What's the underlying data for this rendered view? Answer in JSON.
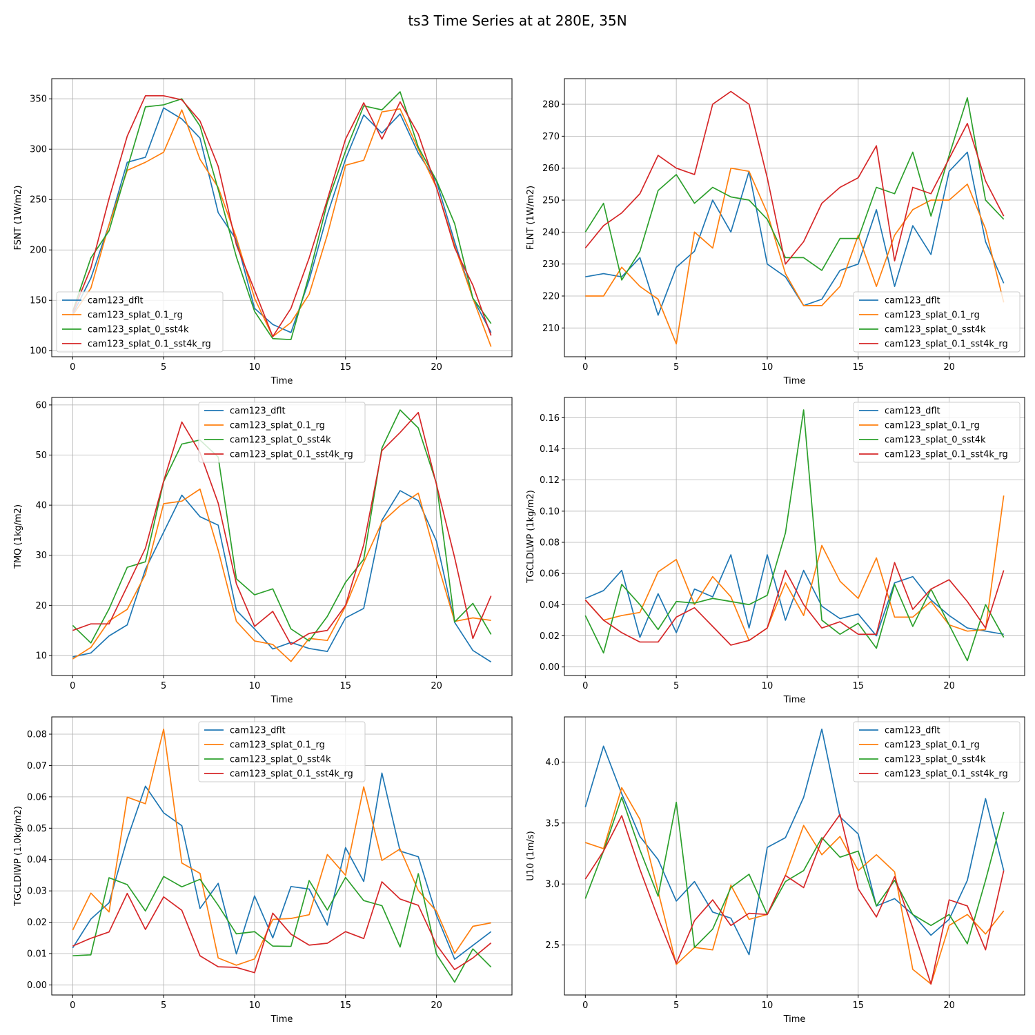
{
  "figure": {
    "title": "ts3 Time Series at at 280E, 35N"
  },
  "colors": {
    "cam123_dflt": "#1f77b4",
    "cam123_splat_0.1_rg": "#ff7f0e",
    "cam123_splat_0_sst4k": "#2ca02c",
    "cam123_splat_0.1_sst4k_rg": "#d62728"
  },
  "chart_data": [
    {
      "type": "line",
      "title": "",
      "xlabel": "Time",
      "ylabel": "FSNT (1W/m2)",
      "xlim": [
        -1.15,
        24.15
      ],
      "ylim": [
        94,
        370
      ],
      "xticks": [
        0,
        5,
        10,
        15,
        20
      ],
      "yticks": [
        100,
        150,
        200,
        250,
        300,
        350
      ],
      "ytick_labels": [
        "100",
        "150",
        "200",
        "250",
        "300",
        "350"
      ],
      "legend_loc": "lower-left",
      "x": [
        0,
        1,
        2,
        3,
        4,
        5,
        6,
        7,
        8,
        9,
        10,
        11,
        12,
        13,
        14,
        15,
        16,
        17,
        18,
        19,
        20,
        21,
        22,
        23
      ],
      "series": [
        {
          "name": "cam123_dflt",
          "color": "#1f77b4",
          "values": [
            136,
            172,
            225,
            287,
            292,
            341,
            330,
            311,
            237,
            210,
            142,
            126,
            118,
            170,
            235,
            290,
            334,
            316,
            335,
            296,
            268,
            208,
            152,
            118
          ]
        },
        {
          "name": "cam123_splat_0.1_rg",
          "color": "#ff7f0e",
          "values": [
            135,
            162,
            225,
            279,
            287,
            297,
            339,
            290,
            262,
            212,
            152,
            114,
            128,
            156,
            215,
            284,
            289,
            337,
            340,
            300,
            262,
            204,
            152,
            104
          ]
        },
        {
          "name": "cam123_splat_0_sst4k",
          "color": "#2ca02c",
          "values": [
            139,
            192,
            219,
            281,
            342,
            344,
            350,
            323,
            260,
            193,
            139,
            112,
            111,
            175,
            247,
            298,
            343,
            339,
            357,
            302,
            269,
            226,
            152,
            127
          ]
        },
        {
          "name": "cam123_splat_0.1_sst4k_rg",
          "color": "#d62728",
          "values": [
            138,
            182,
            251,
            313,
            353,
            353,
            349,
            328,
            283,
            205,
            160,
            114,
            142,
            192,
            250,
            310,
            346,
            310,
            347,
            315,
            262,
            202,
            165,
            115
          ]
        }
      ]
    },
    {
      "type": "line",
      "title": "",
      "xlabel": "Time",
      "ylabel": "FLNT (1W/m2)",
      "xlim": [
        -1.15,
        24.15
      ],
      "ylim": [
        201,
        288
      ],
      "xticks": [
        0,
        5,
        10,
        15,
        20
      ],
      "yticks": [
        210,
        220,
        230,
        240,
        250,
        260,
        270,
        280
      ],
      "ytick_labels": [
        "210",
        "220",
        "230",
        "240",
        "250",
        "260",
        "270",
        "280"
      ],
      "legend_loc": "lower-right",
      "x": [
        0,
        1,
        2,
        3,
        4,
        5,
        6,
        7,
        8,
        9,
        10,
        11,
        12,
        13,
        14,
        15,
        16,
        17,
        18,
        19,
        20,
        21,
        22,
        23
      ],
      "series": [
        {
          "name": "cam123_dflt",
          "color": "#1f77b4",
          "values": [
            226,
            227,
            226,
            232,
            214,
            229,
            234,
            250,
            240,
            259,
            230,
            226,
            217,
            219,
            228,
            230,
            247,
            223,
            242,
            233,
            259,
            265,
            237,
            224
          ]
        },
        {
          "name": "cam123_splat_0.1_rg",
          "color": "#ff7f0e",
          "values": [
            220,
            220,
            229,
            223,
            219,
            205,
            240,
            235,
            260,
            259,
            246,
            227,
            217,
            217,
            223,
            239,
            223,
            239,
            247,
            250,
            250,
            255,
            241,
            218
          ]
        },
        {
          "name": "cam123_splat_0_sst4k",
          "color": "#2ca02c",
          "values": [
            240,
            249,
            225,
            234,
            253,
            258,
            249,
            254,
            251,
            250,
            244,
            232,
            232,
            228,
            238,
            238,
            254,
            252,
            265,
            245,
            264,
            282,
            250,
            244
          ]
        },
        {
          "name": "cam123_splat_0.1_sst4k_rg",
          "color": "#d62728",
          "values": [
            235,
            242,
            246,
            252,
            264,
            260,
            258,
            280,
            284,
            280,
            257,
            230,
            237,
            249,
            254,
            257,
            267,
            231,
            254,
            252,
            263,
            274,
            256,
            245
          ]
        }
      ]
    },
    {
      "type": "line",
      "title": "",
      "xlabel": "Time",
      "ylabel": "TMQ (1kg/m2)",
      "xlim": [
        -1.15,
        24.15
      ],
      "ylim": [
        6,
        61.5
      ],
      "xticks": [
        0,
        5,
        10,
        15,
        20
      ],
      "yticks": [
        10,
        20,
        30,
        40,
        50,
        60
      ],
      "ytick_labels": [
        "10",
        "20",
        "30",
        "40",
        "50",
        "60"
      ],
      "legend_loc": "upper-center",
      "x": [
        0,
        1,
        2,
        3,
        4,
        5,
        6,
        7,
        8,
        9,
        10,
        11,
        12,
        13,
        14,
        15,
        16,
        17,
        18,
        19,
        20,
        21,
        22,
        23
      ],
      "series": [
        {
          "name": "cam123_dflt",
          "color": "#1f77b4",
          "values": [
            9.7,
            10.5,
            13.9,
            16.1,
            27.2,
            34.6,
            42.0,
            37.7,
            36.0,
            19.0,
            15.3,
            11.3,
            12.6,
            11.4,
            10.8,
            17.5,
            19.4,
            37.0,
            42.9,
            40.9,
            32.8,
            16.6,
            11.0,
            8.7
          ]
        },
        {
          "name": "cam123_splat_0.1_rg",
          "color": "#ff7f0e",
          "values": [
            9.3,
            11.6,
            16.9,
            19.2,
            26.2,
            40.3,
            40.8,
            43.2,
            31.0,
            16.8,
            12.9,
            12.2,
            8.8,
            13.4,
            13.0,
            19.8,
            28.6,
            36.6,
            39.9,
            42.4,
            29.1,
            16.8,
            17.5,
            17.0
          ]
        },
        {
          "name": "cam123_splat_0_sst4k",
          "color": "#2ca02c",
          "values": [
            16.0,
            12.5,
            19.3,
            27.6,
            28.7,
            44.7,
            52.2,
            53.0,
            49.6,
            25.3,
            22.1,
            23.3,
            15.3,
            12.9,
            17.8,
            24.6,
            29.2,
            51.4,
            59.0,
            55.4,
            44.3,
            16.7,
            20.4,
            14.2
          ]
        },
        {
          "name": "cam123_splat_0.1_sst4k_rg",
          "color": "#d62728",
          "values": [
            15.0,
            16.3,
            16.3,
            23.8,
            31.4,
            44.8,
            56.6,
            50.5,
            40.4,
            24.3,
            15.8,
            18.8,
            12.2,
            14.4,
            15.0,
            20.0,
            32.1,
            50.9,
            54.5,
            58.5,
            44.1,
            29.5,
            13.4,
            21.9
          ]
        }
      ]
    },
    {
      "type": "line",
      "title": "",
      "xlabel": "Time",
      "ylabel": "TGCLDLWP (1kg/m2)",
      "xlim": [
        -1.15,
        24.15
      ],
      "ylim": [
        -0.0055,
        0.173
      ],
      "xticks": [
        0,
        5,
        10,
        15,
        20
      ],
      "yticks": [
        0.0,
        0.02,
        0.04,
        0.06,
        0.08,
        0.1,
        0.12,
        0.14,
        0.16
      ],
      "ytick_labels": [
        "0.00",
        "0.02",
        "0.04",
        "0.06",
        "0.08",
        "0.10",
        "0.12",
        "0.14",
        "0.16"
      ],
      "legend_loc": "upper-right",
      "x": [
        0,
        1,
        2,
        3,
        4,
        5,
        6,
        7,
        8,
        9,
        10,
        11,
        12,
        13,
        14,
        15,
        16,
        17,
        18,
        19,
        20,
        21,
        22,
        23
      ],
      "series": [
        {
          "name": "cam123_dflt",
          "color": "#1f77b4",
          "values": [
            0.044,
            0.049,
            0.062,
            0.019,
            0.047,
            0.022,
            0.05,
            0.045,
            0.072,
            0.025,
            0.072,
            0.03,
            0.062,
            0.039,
            0.031,
            0.034,
            0.02,
            0.054,
            0.058,
            0.043,
            0.033,
            0.025,
            0.023,
            0.021
          ]
        },
        {
          "name": "cam123_splat_0.1_rg",
          "color": "#ff7f0e",
          "values": [
            0.043,
            0.03,
            0.033,
            0.035,
            0.061,
            0.069,
            0.04,
            0.058,
            0.045,
            0.017,
            0.025,
            0.054,
            0.033,
            0.078,
            0.055,
            0.044,
            0.07,
            0.032,
            0.032,
            0.042,
            0.027,
            0.023,
            0.024,
            0.11
          ]
        },
        {
          "name": "cam123_splat_0_sst4k",
          "color": "#2ca02c",
          "values": [
            0.033,
            0.009,
            0.053,
            0.04,
            0.024,
            0.042,
            0.041,
            0.044,
            0.042,
            0.04,
            0.046,
            0.086,
            0.165,
            0.03,
            0.021,
            0.028,
            0.012,
            0.053,
            0.026,
            0.05,
            0.027,
            0.004,
            0.04,
            0.019
          ]
        },
        {
          "name": "cam123_splat_0.1_sst4k_rg",
          "color": "#d62728",
          "values": [
            0.043,
            0.03,
            0.022,
            0.016,
            0.016,
            0.032,
            0.038,
            0.026,
            0.014,
            0.017,
            0.025,
            0.062,
            0.04,
            0.025,
            0.029,
            0.021,
            0.021,
            0.067,
            0.037,
            0.05,
            0.056,
            0.042,
            0.025,
            0.062
          ]
        }
      ]
    },
    {
      "type": "line",
      "title": "",
      "xlabel": "Time",
      "ylabel": "TGCLDIWP (1.0kg/m2)",
      "xlim": [
        -1.15,
        24.15
      ],
      "ylim": [
        -0.0032,
        0.0855
      ],
      "xticks": [
        0,
        5,
        10,
        15,
        20
      ],
      "yticks": [
        0.0,
        0.01,
        0.02,
        0.03,
        0.04,
        0.05,
        0.06,
        0.07,
        0.08
      ],
      "ytick_labels": [
        "0.00",
        "0.01",
        "0.02",
        "0.03",
        "0.04",
        "0.05",
        "0.06",
        "0.07",
        "0.08"
      ],
      "legend_loc": "upper-center",
      "x": [
        0,
        1,
        2,
        3,
        4,
        5,
        6,
        7,
        8,
        9,
        10,
        11,
        12,
        13,
        14,
        15,
        16,
        17,
        18,
        19,
        20,
        21,
        22,
        23
      ],
      "series": [
        {
          "name": "cam123_dflt",
          "color": "#1f77b4",
          "values": [
            0.0118,
            0.021,
            0.0262,
            0.0466,
            0.0634,
            0.0549,
            0.0508,
            0.0244,
            0.0324,
            0.0099,
            0.0284,
            0.015,
            0.0314,
            0.0306,
            0.0191,
            0.0438,
            0.033,
            0.0676,
            0.0427,
            0.0409,
            0.0222,
            0.0082,
            0.0126,
            0.017
          ]
        },
        {
          "name": "cam123_splat_0.1_rg",
          "color": "#ff7f0e",
          "values": [
            0.0175,
            0.0293,
            0.0233,
            0.0599,
            0.0578,
            0.0816,
            0.0389,
            0.0356,
            0.0086,
            0.0063,
            0.0083,
            0.0209,
            0.0212,
            0.0224,
            0.0416,
            0.035,
            0.0632,
            0.0397,
            0.0434,
            0.0301,
            0.0235,
            0.0101,
            0.0187,
            0.0198
          ]
        },
        {
          "name": "cam123_splat_0_sst4k",
          "color": "#2ca02c",
          "values": [
            0.0093,
            0.0096,
            0.0342,
            0.032,
            0.0236,
            0.0346,
            0.0313,
            0.0337,
            0.0254,
            0.0163,
            0.017,
            0.0124,
            0.0123,
            0.0333,
            0.0239,
            0.0343,
            0.0269,
            0.0253,
            0.0121,
            0.0355,
            0.0098,
            0.0009,
            0.0115,
            0.0057
          ]
        },
        {
          "name": "cam123_splat_0.1_sst4k_rg",
          "color": "#d62728",
          "values": [
            0.0124,
            0.0149,
            0.0169,
            0.0292,
            0.0177,
            0.0281,
            0.0238,
            0.0093,
            0.0058,
            0.0056,
            0.0039,
            0.0229,
            0.0162,
            0.0127,
            0.0133,
            0.017,
            0.0148,
            0.0329,
            0.0274,
            0.0254,
            0.0128,
            0.0049,
            0.0086,
            0.0134
          ]
        }
      ]
    },
    {
      "type": "line",
      "title": "",
      "xlabel": "Time",
      "ylabel": "U10 (1m/s)",
      "xlim": [
        -1.15,
        24.15
      ],
      "ylim": [
        2.09,
        4.37
      ],
      "xticks": [
        0,
        5,
        10,
        15,
        20
      ],
      "yticks": [
        2.5,
        3.0,
        3.5,
        4.0
      ],
      "ytick_labels": [
        "2.5",
        "3.0",
        "3.5",
        "4.0"
      ],
      "legend_loc": "upper-right",
      "x": [
        0,
        1,
        2,
        3,
        4,
        5,
        6,
        7,
        8,
        9,
        10,
        11,
        12,
        13,
        14,
        15,
        16,
        17,
        18,
        19,
        20,
        21,
        22,
        23
      ],
      "series": [
        {
          "name": "cam123_dflt",
          "color": "#1f77b4",
          "values": [
            3.63,
            4.13,
            3.74,
            3.39,
            3.2,
            2.86,
            3.02,
            2.77,
            2.72,
            2.42,
            3.3,
            3.38,
            3.71,
            4.27,
            3.55,
            3.41,
            2.82,
            2.88,
            2.75,
            2.58,
            2.71,
            3.03,
            3.7,
            3.11
          ]
        },
        {
          "name": "cam123_splat_0.1_rg",
          "color": "#ff7f0e",
          "values": [
            3.34,
            3.29,
            3.79,
            3.53,
            2.94,
            2.34,
            2.48,
            2.46,
            2.99,
            2.71,
            2.75,
            3.07,
            3.48,
            3.24,
            3.39,
            3.11,
            3.24,
            3.1,
            2.3,
            2.18,
            2.66,
            2.75,
            2.59,
            2.78
          ]
        },
        {
          "name": "cam123_splat_0_sst4k",
          "color": "#2ca02c",
          "values": [
            2.88,
            3.27,
            3.71,
            3.28,
            2.9,
            3.67,
            2.48,
            2.63,
            2.97,
            3.08,
            2.75,
            3.02,
            3.11,
            3.38,
            3.22,
            3.27,
            2.82,
            3.03,
            2.75,
            2.66,
            2.75,
            2.51,
            3.03,
            3.59
          ]
        },
        {
          "name": "cam123_splat_0.1_sst4k_rg",
          "color": "#d62728",
          "values": [
            3.04,
            3.27,
            3.56,
            3.12,
            2.72,
            2.35,
            2.7,
            2.87,
            2.66,
            2.76,
            2.75,
            3.07,
            2.97,
            3.36,
            3.57,
            2.96,
            2.73,
            3.06,
            2.64,
            2.18,
            2.87,
            2.82,
            2.46,
            3.11
          ]
        }
      ]
    }
  ]
}
